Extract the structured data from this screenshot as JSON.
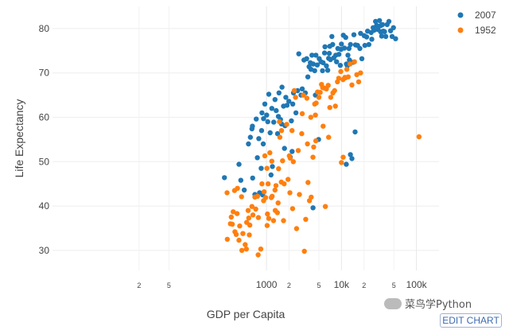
{
  "chart_data": {
    "type": "scatter",
    "xlabel": "GDP per Capita",
    "ylabel": "Life Expectancy",
    "x_scale": "log",
    "xlim": [
      1.4,
      200000
    ],
    "ylim": [
      25.5,
      85
    ],
    "grid": true,
    "legend_position": "top-right",
    "x_ticks": [
      {
        "v": 20,
        "label": "2",
        "major": false
      },
      {
        "v": 50,
        "label": "5",
        "major": false
      },
      {
        "v": 1000,
        "label": "1000",
        "major": true
      },
      {
        "v": 2000,
        "label": "2",
        "major": false
      },
      {
        "v": 5000,
        "label": "5",
        "major": false
      },
      {
        "v": 10000,
        "label": "10k",
        "major": true
      },
      {
        "v": 20000,
        "label": "2",
        "major": false
      },
      {
        "v": 50000,
        "label": "5",
        "major": false
      },
      {
        "v": 100000,
        "label": "100k",
        "major": true
      }
    ],
    "y_ticks": [
      30,
      40,
      50,
      60,
      70,
      80
    ],
    "series": [
      {
        "name": "2007",
        "color": "#1f77b4",
        "points": [
          [
            275,
            46.4
          ],
          [
            430,
            49.4
          ],
          [
            455,
            45.8
          ],
          [
            505,
            43.6
          ],
          [
            575,
            54.0
          ],
          [
            610,
            55.5
          ],
          [
            640,
            57.4
          ],
          [
            650,
            58.0
          ],
          [
            655,
            46.3
          ],
          [
            700,
            42.6
          ],
          [
            730,
            59.6
          ],
          [
            755,
            50.9
          ],
          [
            790,
            55.2
          ],
          [
            810,
            43.0
          ],
          [
            850,
            48.5
          ],
          [
            860,
            57.0
          ],
          [
            870,
            61.0
          ],
          [
            890,
            42.5
          ],
          [
            905,
            54.0
          ],
          [
            915,
            59.7
          ],
          [
            950,
            63.0
          ],
          [
            1005,
            60.5
          ],
          [
            1040,
            59.0
          ],
          [
            1075,
            65.2
          ],
          [
            1120,
            56.5
          ],
          [
            1150,
            47.0
          ],
          [
            1180,
            62.0
          ],
          [
            1200,
            48.9
          ],
          [
            1250,
            58.9
          ],
          [
            1300,
            64.0
          ],
          [
            1350,
            61.5
          ],
          [
            1405,
            56.3
          ],
          [
            1440,
            60.2
          ],
          [
            1470,
            65.5
          ],
          [
            1540,
            59.5
          ],
          [
            1590,
            58.5
          ],
          [
            1610,
            66.8
          ],
          [
            1690,
            62.5
          ],
          [
            1740,
            53.0
          ],
          [
            1770,
            58.1
          ],
          [
            1810,
            64.5
          ],
          [
            1880,
            62.7
          ],
          [
            1990,
            63.6
          ],
          [
            2080,
            51.0
          ],
          [
            2150,
            59.2
          ],
          [
            2200,
            52.3
          ],
          [
            2240,
            63.0
          ],
          [
            2290,
            65.5
          ],
          [
            2470,
            61.0
          ],
          [
            2600,
            66.0
          ],
          [
            2700,
            74.3
          ],
          [
            2890,
            65.0
          ],
          [
            3000,
            66.4
          ],
          [
            3160,
            72.9
          ],
          [
            3300,
            65.5
          ],
          [
            3440,
            73.2
          ],
          [
            3560,
            69.1
          ],
          [
            3700,
            71.4
          ],
          [
            3840,
            72.3
          ],
          [
            3920,
            70.8
          ],
          [
            4040,
            74.0
          ],
          [
            4180,
            39.6
          ],
          [
            4200,
            72.0
          ],
          [
            4400,
            70.5
          ],
          [
            4500,
            65.0
          ],
          [
            4560,
            74.0
          ],
          [
            4750,
            71.8
          ],
          [
            4960,
            55.0
          ],
          [
            5050,
            73.2
          ],
          [
            5330,
            72.5
          ],
          [
            5580,
            70.5
          ],
          [
            5690,
            72.3
          ],
          [
            5950,
            74.5
          ],
          [
            6030,
            75.9
          ],
          [
            6290,
            71.6
          ],
          [
            6560,
            70.6
          ],
          [
            6750,
            73.3
          ],
          [
            6880,
            74.4
          ],
          [
            7000,
            76.0
          ],
          [
            7140,
            73.0
          ],
          [
            7460,
            78.2
          ],
          [
            7630,
            76.4
          ],
          [
            7900,
            73.4
          ],
          [
            8400,
            74.0
          ],
          [
            8600,
            72.5
          ],
          [
            8960,
            75.5
          ],
          [
            9250,
            74.2
          ],
          [
            9650,
            71.7
          ],
          [
            9870,
            75.3
          ],
          [
            10000,
            76.5
          ],
          [
            10600,
            78.5
          ],
          [
            10950,
            75.6
          ],
          [
            11400,
            78.0
          ],
          [
            11600,
            49.4
          ],
          [
            11650,
            72.0
          ],
          [
            11980,
            71.6
          ],
          [
            12200,
            74.0
          ],
          [
            12600,
            75.5
          ],
          [
            12780,
            72.9
          ],
          [
            13170,
            51.6
          ],
          [
            13200,
            76.4
          ],
          [
            13800,
            50.7
          ],
          [
            14300,
            72.4
          ],
          [
            14650,
            78.6
          ],
          [
            15200,
            56.7
          ],
          [
            15390,
            76.3
          ],
          [
            16400,
            76.2
          ],
          [
            17600,
            75.5
          ],
          [
            18000,
            78.9
          ],
          [
            18700,
            73.2
          ],
          [
            20100,
            78.4
          ],
          [
            20510,
            76.2
          ],
          [
            21650,
            78.1
          ],
          [
            22300,
            79.4
          ],
          [
            23200,
            76.4
          ],
          [
            24900,
            79.1
          ],
          [
            25400,
            77.6
          ],
          [
            26500,
            80.2
          ],
          [
            27200,
            79.6
          ],
          [
            28500,
            81.6
          ],
          [
            29500,
            80.7
          ],
          [
            30400,
            79.8
          ],
          [
            31600,
            80.5
          ],
          [
            32200,
            81.8
          ],
          [
            33200,
            79.3
          ],
          [
            33700,
            80.7
          ],
          [
            34400,
            78.3
          ],
          [
            35300,
            80.9
          ],
          [
            36200,
            79.4
          ],
          [
            37500,
            79.3
          ],
          [
            39000,
            78.2
          ],
          [
            40700,
            80.9
          ],
          [
            42900,
            81.6
          ],
          [
            45200,
            79.5
          ],
          [
            47300,
            78.2
          ],
          [
            49400,
            80.2
          ],
          [
            52700,
            77.7
          ]
        ]
      },
      {
        "name": "1952",
        "color": "#ff7f0e",
        "points": [
          [
            298,
            43.0
          ],
          [
            300,
            32.5
          ],
          [
            330,
            36.0
          ],
          [
            339,
            37.5
          ],
          [
            350,
            35.9
          ],
          [
            360,
            38.7
          ],
          [
            375,
            43.5
          ],
          [
            380,
            34.2
          ],
          [
            395,
            33.6
          ],
          [
            405,
            38.3
          ],
          [
            410,
            44.0
          ],
          [
            430,
            32.3
          ],
          [
            440,
            35.5
          ],
          [
            465,
            42.1
          ],
          [
            470,
            30.0
          ],
          [
            485,
            33.8
          ],
          [
            520,
            31.3
          ],
          [
            540,
            30.3
          ],
          [
            545,
            36.3
          ],
          [
            570,
            39.0
          ],
          [
            580,
            37.3
          ],
          [
            590,
            33.5
          ],
          [
            600,
            35.7
          ],
          [
            640,
            39.9
          ],
          [
            660,
            38.0
          ],
          [
            700,
            42.0
          ],
          [
            720,
            39.3
          ],
          [
            760,
            42.2
          ],
          [
            775,
            29.0
          ],
          [
            780,
            37.4
          ],
          [
            840,
            30.3
          ],
          [
            870,
            45.0
          ],
          [
            915,
            41.2
          ],
          [
            930,
            43.2
          ],
          [
            950,
            51.3
          ],
          [
            975,
            41.9
          ],
          [
            1015,
            48.5
          ],
          [
            1020,
            35.6
          ],
          [
            1030,
            38.2
          ],
          [
            1050,
            45.0
          ],
          [
            1075,
            37.2
          ],
          [
            1110,
            52.0
          ],
          [
            1160,
            41.9
          ],
          [
            1180,
            50.1
          ],
          [
            1190,
            42.2
          ],
          [
            1240,
            36.7
          ],
          [
            1300,
            43.6
          ],
          [
            1310,
            39.0
          ],
          [
            1340,
            44.6
          ],
          [
            1400,
            38.5
          ],
          [
            1430,
            40.7
          ],
          [
            1450,
            48.4
          ],
          [
            1490,
            59.0
          ],
          [
            1510,
            55.5
          ],
          [
            1575,
            45.4
          ],
          [
            1590,
            57.0
          ],
          [
            1640,
            50.2
          ],
          [
            1690,
            36.7
          ],
          [
            1720,
            45.0
          ],
          [
            1860,
            58.4
          ],
          [
            1940,
            46.0
          ],
          [
            2020,
            51.3
          ],
          [
            2050,
            43.0
          ],
          [
            2070,
            50.8
          ],
          [
            2190,
            57.0
          ],
          [
            2230,
            39.4
          ],
          [
            2280,
            50.0
          ],
          [
            2350,
            66.0
          ],
          [
            2440,
            64.5
          ],
          [
            2520,
            34.9
          ],
          [
            2650,
            52.5
          ],
          [
            2750,
            42.6
          ],
          [
            2950,
            56.3
          ],
          [
            3000,
            60.8
          ],
          [
            3100,
            65.0
          ],
          [
            3200,
            29.8
          ],
          [
            3340,
            37.0
          ],
          [
            3460,
            64.3
          ],
          [
            3520,
            54.0
          ],
          [
            3580,
            45.3
          ],
          [
            3740,
            41.2
          ],
          [
            3900,
            60.0
          ],
          [
            3950,
            42.0
          ],
          [
            4170,
            51.0
          ],
          [
            4260,
            53.3
          ],
          [
            4400,
            63.0
          ],
          [
            4500,
            60.5
          ],
          [
            4550,
            54.7
          ],
          [
            4600,
            63.2
          ],
          [
            4800,
            65.7
          ],
          [
            5000,
            64.5
          ],
          [
            5200,
            65.6
          ],
          [
            5430,
            67.4
          ],
          [
            5620,
            66.7
          ],
          [
            5700,
            58.0
          ],
          [
            5900,
            66.6
          ],
          [
            6100,
            39.9
          ],
          [
            6300,
            66.4
          ],
          [
            6660,
            67.2
          ],
          [
            6750,
            55.5
          ],
          [
            7000,
            62.2
          ],
          [
            7200,
            64.5
          ],
          [
            7700,
            65.5
          ],
          [
            8100,
            66.0
          ],
          [
            8300,
            62.5
          ],
          [
            8850,
            68.0
          ],
          [
            9200,
            68.8
          ],
          [
            9800,
            70.3
          ],
          [
            10000,
            49.8
          ],
          [
            10500,
            68.5
          ],
          [
            10550,
            51.0
          ],
          [
            11100,
            69.0
          ],
          [
            11300,
            68.9
          ],
          [
            11800,
            70.8
          ],
          [
            12300,
            69.1
          ],
          [
            13050,
            72.0
          ],
          [
            13800,
            67.3
          ],
          [
            14900,
            72.5
          ],
          [
            16000,
            69.6
          ],
          [
            16980,
            68.0
          ],
          [
            18000,
            70.0
          ],
          [
            108382,
            55.6
          ]
        ]
      }
    ]
  },
  "watermark": {
    "text": "菜鸟学Python",
    "logo_icon": "wechat-icon"
  },
  "edit_button": {
    "label": "EDIT CHART"
  }
}
